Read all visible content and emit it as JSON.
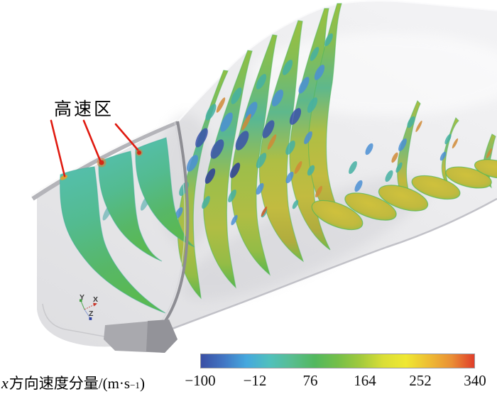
{
  "figure": {
    "annotation": {
      "text": "高速区",
      "arrow_color": "#e01a10",
      "hotspot_color": "#d42b16",
      "hotspot_halo": "#e08030"
    },
    "axes_triad": {
      "y_label": "Y",
      "x_label": "X",
      "z_label": "Z",
      "y_color": "#3f9e3f",
      "x_color": "#c8362a",
      "z_color": "#2b3f9e"
    }
  },
  "chart_data": {
    "type": "heatmap",
    "title": "",
    "scene": "3D duct cross-section contour slices",
    "colorbar": {
      "orientation": "horizontal",
      "label_full": "x方向速度分量/(m·s⁻¹)",
      "label_italic": "x",
      "label_text": "方向速度分量/(m·s",
      "label_sup": "−1",
      "label_close": ")",
      "tick_labels": [
        "−100",
        "−12",
        "76",
        "164",
        "252",
        "340"
      ],
      "range": [
        -100,
        340
      ],
      "colors": [
        "#3a4fa4",
        "#4276c4",
        "#45a8de",
        "#50c0bd",
        "#58bd90",
        "#52b85e",
        "#74bf49",
        "#a2ca3c",
        "#dade36",
        "#efe832",
        "#eebd33",
        "#ea8f35",
        "#e03e2a"
      ]
    },
    "annotations": [
      {
        "text": "高速区",
        "leader_lines": 3
      }
    ],
    "axes_triad": [
      "Y",
      "X",
      "Z"
    ],
    "slice_palette": {
      "teal": "#52bb90",
      "green": "#5ab74e",
      "olive": "#b0bd44",
      "dark_blue": "#3a52aa",
      "deep_blue": "#2c3e9a",
      "sky_blue": "#4b8fd4",
      "turquoise": "#45b0a2",
      "orange": "#d08a36",
      "red_orange": "#d85a28",
      "foot_yellow": "#c2ba3e",
      "duct_gray": "#e8e8ea"
    }
  }
}
